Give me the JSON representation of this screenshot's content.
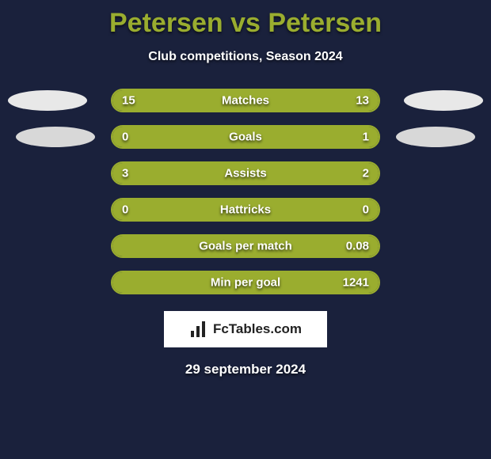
{
  "title_color": "#9aad2f",
  "title": "Petersen vs Petersen",
  "subtitle": "Club competitions, Season 2024",
  "bar_border_color": "#9aad2f",
  "fill_color": "#9aad2f",
  "stats": [
    {
      "label": "Matches",
      "left_val": "15",
      "right_val": "13",
      "left_pct": 54,
      "right_pct": 46,
      "show_avatars": "pair1"
    },
    {
      "label": "Goals",
      "left_val": "0",
      "right_val": "1",
      "left_pct": 0,
      "right_pct": 100,
      "show_avatars": "pair2"
    },
    {
      "label": "Assists",
      "left_val": "3",
      "right_val": "2",
      "left_pct": 60,
      "right_pct": 40
    },
    {
      "label": "Hattricks",
      "left_val": "0",
      "right_val": "0",
      "left_pct": 50,
      "right_pct": 50
    },
    {
      "label": "Goals per match",
      "left_val": "",
      "right_val": "0.08",
      "left_pct": 0,
      "right_pct": 100
    },
    {
      "label": "Min per goal",
      "left_val": "",
      "right_val": "1241",
      "left_pct": 0,
      "right_pct": 100
    }
  ],
  "branding_text": "FcTables.com",
  "date_text": "29 september 2024"
}
